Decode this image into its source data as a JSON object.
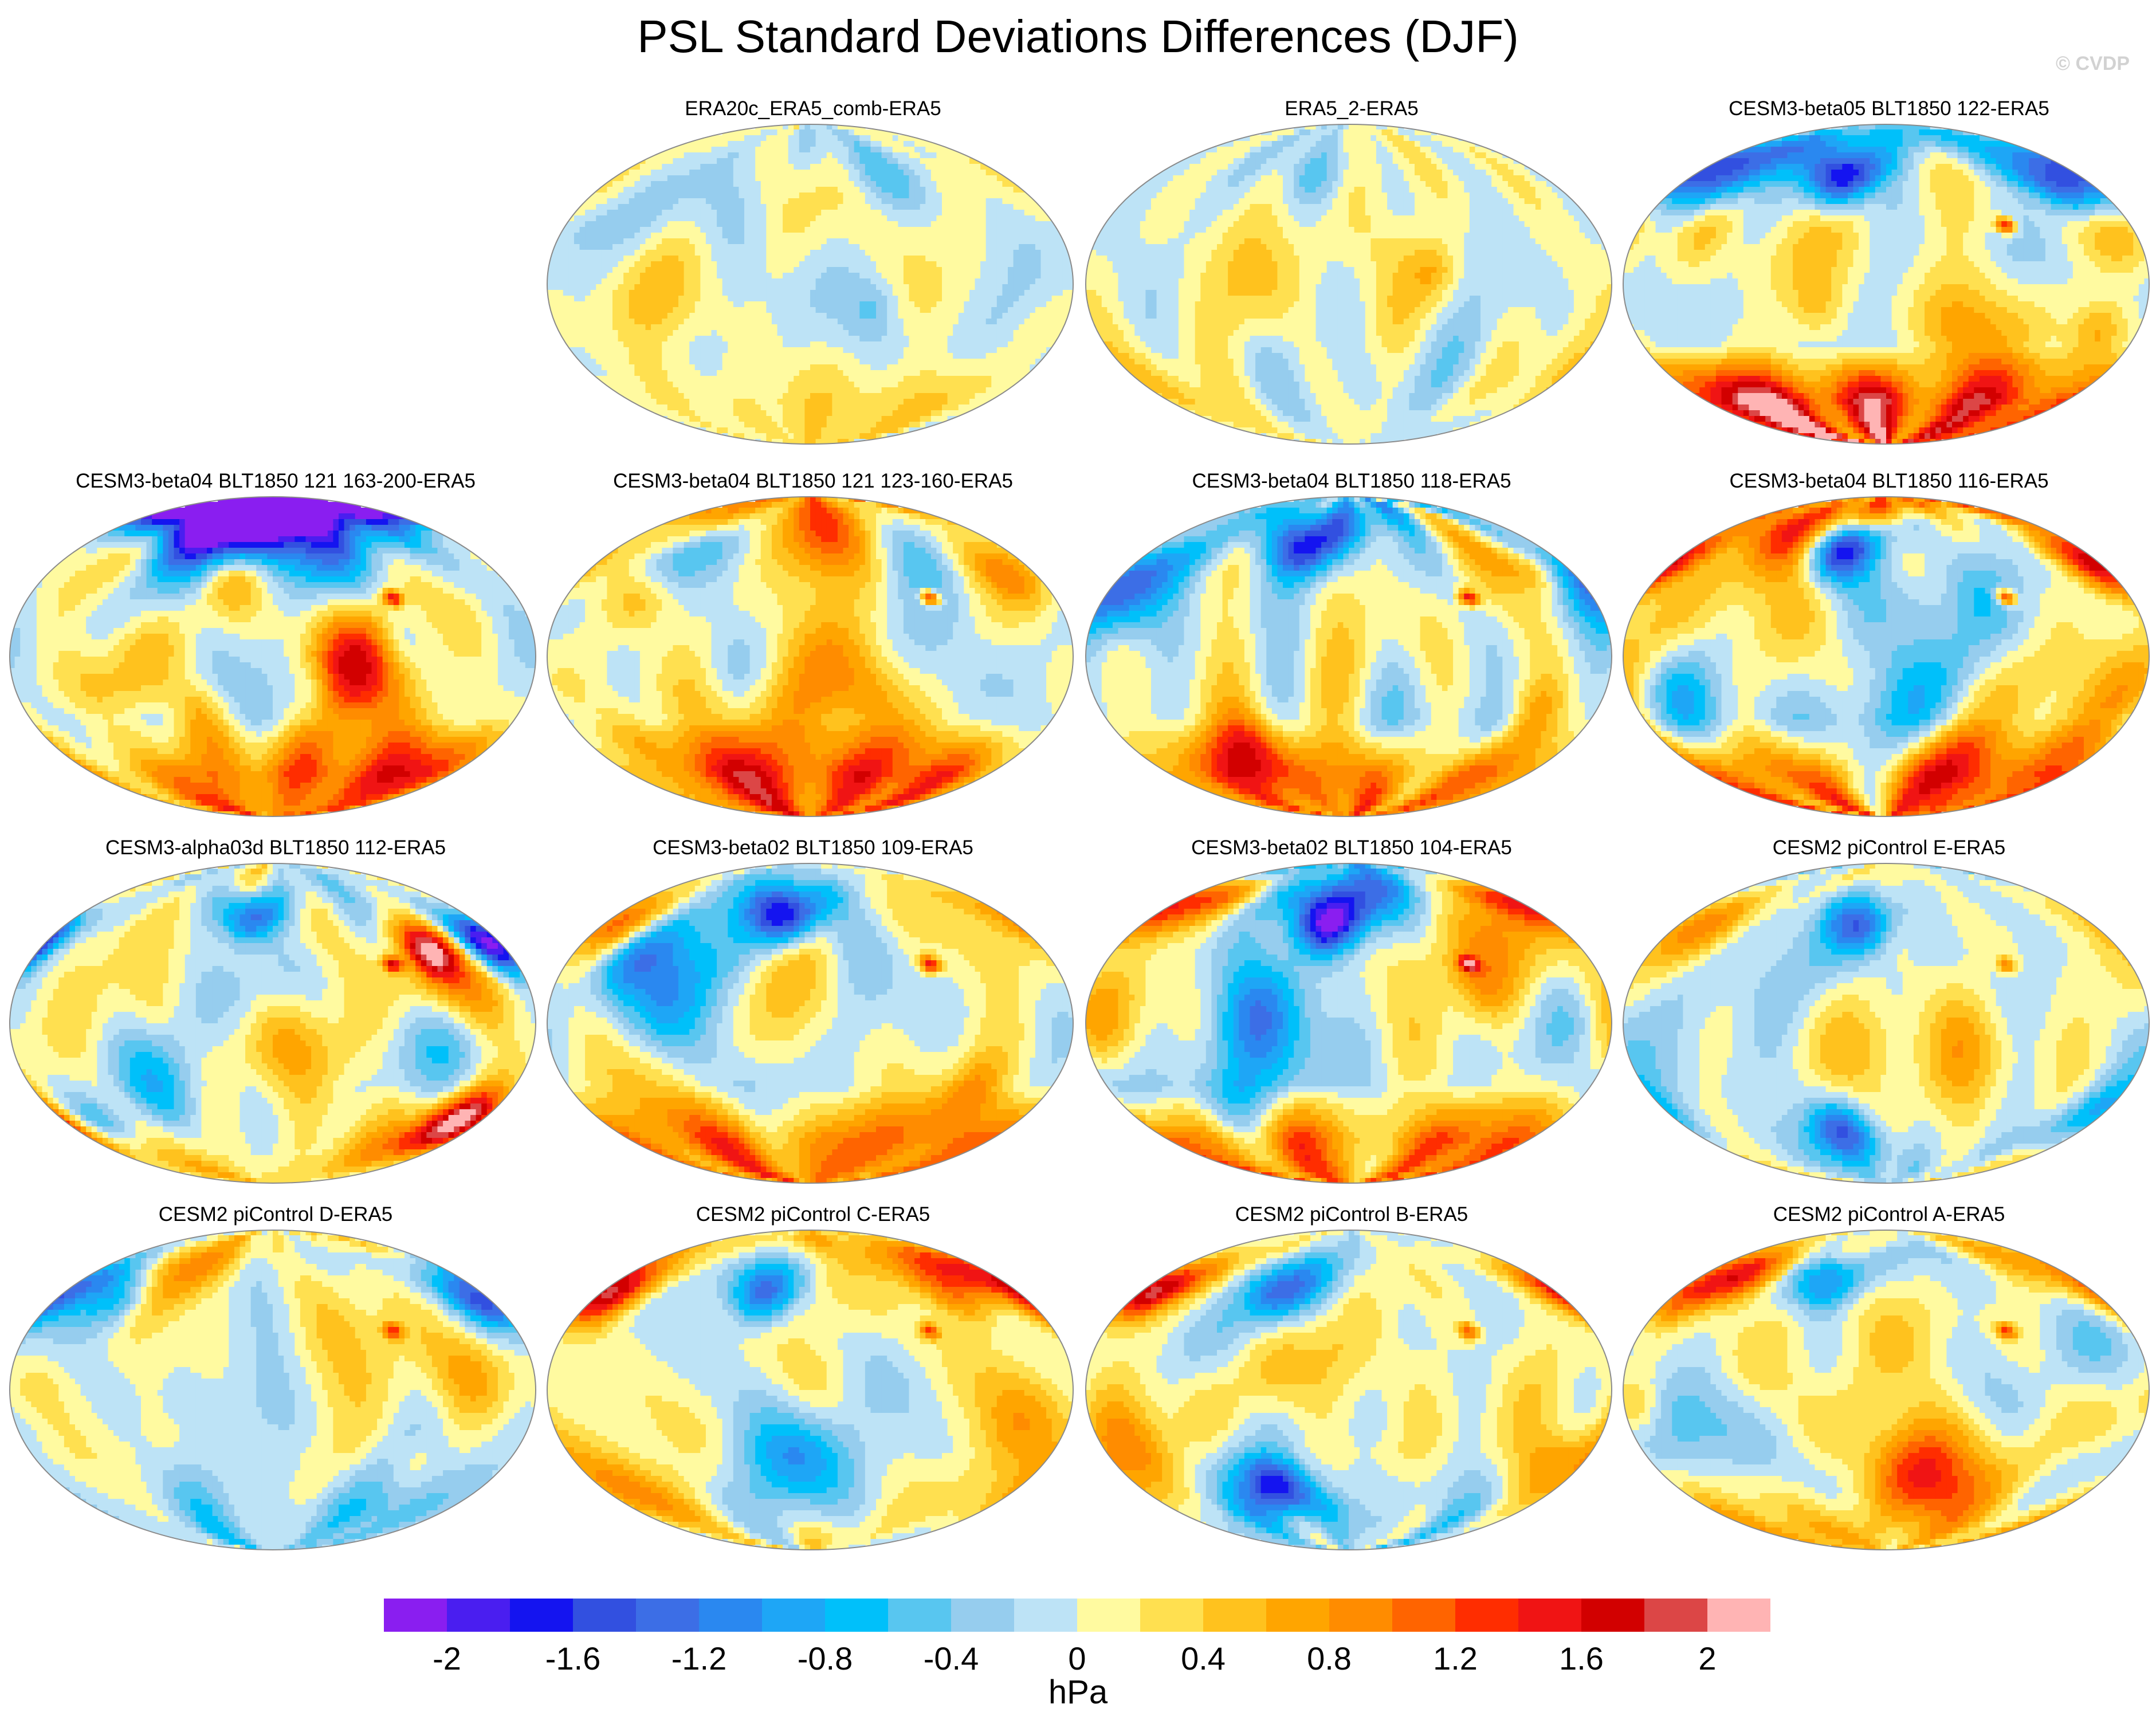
{
  "title": "PSL Standard Deviations Differences (DJF)",
  "copyright": "© CVDP",
  "chart_data": {
    "type": "heatmap",
    "title": "PSL Standard Deviations Differences (DJF)",
    "projection": "robinson (global map panels)",
    "units": "hPa",
    "colorbar": {
      "boundaries": [
        -2.2,
        -2,
        -1.8,
        -1.6,
        -1.4,
        -1.2,
        -1,
        -0.8,
        -0.6,
        -0.4,
        -0.2,
        0,
        0.2,
        0.4,
        0.6,
        0.8,
        1,
        1.2,
        1.4,
        1.6,
        1.8,
        2,
        2.2
      ],
      "colors": [
        "#8a1ef0",
        "#4a1ef0",
        "#1414f0",
        "#3250e0",
        "#3c6ee6",
        "#2a88f0",
        "#1ea6f6",
        "#00c0fa",
        "#58c6f0",
        "#96cdee",
        "#bde3f6",
        "#fffaa0",
        "#ffe050",
        "#ffc21e",
        "#ffa500",
        "#ff8c00",
        "#ff6400",
        "#ff2d00",
        "#f01414",
        "#d20000",
        "#dc4646",
        "#ffb4b4"
      ],
      "tick_labels": [
        "-2",
        "-1.6",
        "-1.2",
        "-0.8",
        "-0.4",
        "0",
        "0.4",
        "0.8",
        "1.2",
        "1.6",
        "2"
      ],
      "tick_values": [
        -2,
        -1.6,
        -1.2,
        -0.8,
        -0.4,
        0,
        0.4,
        0.8,
        1.2,
        1.6,
        2
      ]
    },
    "panels": [
      {
        "title": "ERA20c_ERA5_comb-ERA5",
        "row": 0,
        "col": 1,
        "seed": 11,
        "amp": 0.45,
        "sbias": 0.35,
        "spot": 0.0,
        "nh": []
      },
      {
        "title": "ERA5_2-ERA5",
        "row": 0,
        "col": 2,
        "seed": 23,
        "amp": 0.4,
        "sbias": 0.05,
        "spot": 0.0,
        "nh": []
      },
      {
        "title": "CESM3-beta05 BLT1850 122-ERA5",
        "row": 0,
        "col": 3,
        "seed": 37,
        "amp": 0.7,
        "sbias": 1.9,
        "spot": 1.6,
        "nh": [
          {
            "lon": 150,
            "lat": 55,
            "v": -1.8,
            "r": 14
          },
          {
            "lon": -40,
            "lat": 60,
            "v": -2.0,
            "r": 12
          },
          {
            "lon": -150,
            "lat": 60,
            "v": -1.2,
            "r": 16
          }
        ]
      },
      {
        "title": "CESM3-beta04 BLT1850 121 163-200-ERA5",
        "row": 1,
        "col": 0,
        "seed": 41,
        "amp": 0.7,
        "sbias": 1.3,
        "spot": 1.6,
        "nh": [
          {
            "lon": 20,
            "lat": 80,
            "v": -2.0,
            "r": 30
          },
          {
            "lon": -60,
            "lat": 75,
            "v": -1.6,
            "r": 20
          },
          {
            "lon": -30,
            "lat": 45,
            "v": 0.9,
            "r": 14
          }
        ]
      },
      {
        "title": "CESM3-beta04 BLT1850 121 123-160-ERA5",
        "row": 1,
        "col": 1,
        "seed": 53,
        "amp": 0.7,
        "sbias": 1.2,
        "spot": 1.6,
        "nh": [
          {
            "lon": 160,
            "lat": 45,
            "v": 1.0,
            "r": 14
          },
          {
            "lon": -120,
            "lat": 50,
            "v": -1.0,
            "r": 14
          },
          {
            "lon": 0,
            "lat": 80,
            "v": 0.8,
            "r": 25
          }
        ]
      },
      {
        "title": "CESM3-beta04 BLT1850 118-ERA5",
        "row": 1,
        "col": 2,
        "seed": 67,
        "amp": 0.7,
        "sbias": 1.1,
        "spot": 1.5,
        "nh": [
          {
            "lon": -170,
            "lat": 40,
            "v": -1.4,
            "r": 18
          },
          {
            "lon": -40,
            "lat": 65,
            "v": -1.5,
            "r": 14
          },
          {
            "lon": 150,
            "lat": 50,
            "v": 1.0,
            "r": 12
          }
        ]
      },
      {
        "title": "CESM3-beta04 BLT1850 116-ERA5",
        "row": 1,
        "col": 3,
        "seed": 71,
        "amp": 0.7,
        "sbias": 1.3,
        "spot": 1.6,
        "nh": [
          {
            "lon": 175,
            "lat": 50,
            "v": 2.2,
            "r": 13
          },
          {
            "lon": -40,
            "lat": 60,
            "v": -1.7,
            "r": 12
          },
          {
            "lon": -90,
            "lat": 75,
            "v": 1.4,
            "r": 16
          }
        ]
      },
      {
        "title": "CESM3-alpha03d BLT1850 112-ERA5",
        "row": 2,
        "col": 0,
        "seed": 83,
        "amp": 0.65,
        "sbias": 0.4,
        "spot": 1.5,
        "nh": [
          {
            "lon": 170,
            "lat": 45,
            "v": -2.1,
            "r": 11
          },
          {
            "lon": -20,
            "lat": 60,
            "v": -1.8,
            "r": 11
          },
          {
            "lon": 120,
            "lat": 40,
            "v": 1.4,
            "r": 10
          },
          {
            "lon": 160,
            "lat": -55,
            "v": 1.6,
            "r": 12
          }
        ]
      },
      {
        "title": "CESM3-beta02 BLT1850 109-ERA5",
        "row": 2,
        "col": 1,
        "seed": 97,
        "amp": 0.7,
        "sbias": 1.1,
        "spot": 1.6,
        "nh": [
          {
            "lon": -20,
            "lat": 60,
            "v": -1.9,
            "r": 12
          },
          {
            "lon": -160,
            "lat": 55,
            "v": 1.0,
            "r": 12
          }
        ]
      },
      {
        "title": "CESM3-beta02 BLT1850 104-ERA5",
        "row": 2,
        "col": 2,
        "seed": 101,
        "amp": 0.7,
        "sbias": 1.4,
        "spot": 1.5,
        "nh": [
          {
            "lon": -20,
            "lat": 55,
            "v": -1.9,
            "r": 12
          },
          {
            "lon": -170,
            "lat": 65,
            "v": 1.4,
            "r": 14
          },
          {
            "lon": 20,
            "lat": 80,
            "v": -1.3,
            "r": 25
          }
        ]
      },
      {
        "title": "CESM2 piControl E-ERA5",
        "row": 2,
        "col": 3,
        "seed": 113,
        "amp": 0.6,
        "sbias": 0.0,
        "spot": 1.0,
        "nh": [
          {
            "lon": -20,
            "lat": 55,
            "v": -1.3,
            "r": 12
          },
          {
            "lon": -150,
            "lat": 55,
            "v": 1.0,
            "r": 16
          },
          {
            "lon": -40,
            "lat": -60,
            "v": -1.2,
            "r": 12
          }
        ]
      },
      {
        "title": "CESM2 piControl D-ERA5",
        "row": 3,
        "col": 0,
        "seed": 127,
        "amp": 0.6,
        "sbias": -0.3,
        "spot": 1.2,
        "nh": [
          {
            "lon": 170,
            "lat": 50,
            "v": -1.2,
            "r": 12
          },
          {
            "lon": -120,
            "lat": 55,
            "v": -1.0,
            "r": 12
          },
          {
            "lon": -100,
            "lat": 65,
            "v": 1.0,
            "r": 14
          }
        ]
      },
      {
        "title": "CESM2 piControl C-ERA5",
        "row": 3,
        "col": 1,
        "seed": 131,
        "amp": 0.6,
        "sbias": 0.3,
        "spot": 1.2,
        "nh": [
          {
            "lon": -170,
            "lat": 55,
            "v": 1.8,
            "r": 13
          },
          {
            "lon": -40,
            "lat": 55,
            "v": -1.4,
            "r": 12
          },
          {
            "lon": 120,
            "lat": 65,
            "v": 1.2,
            "r": 14
          }
        ]
      },
      {
        "title": "CESM2 piControl B-ERA5",
        "row": 3,
        "col": 2,
        "seed": 149,
        "amp": 0.6,
        "sbias": -0.4,
        "spot": 1.2,
        "nh": [
          {
            "lon": -170,
            "lat": 55,
            "v": 2.1,
            "r": 12
          },
          {
            "lon": -60,
            "lat": 55,
            "v": -1.3,
            "r": 12
          },
          {
            "lon": -60,
            "lat": -55,
            "v": -1.7,
            "r": 12
          }
        ]
      },
      {
        "title": "CESM2 piControl A-ERA5",
        "row": 3,
        "col": 3,
        "seed": 157,
        "amp": 0.6,
        "sbias": 0.0,
        "spot": 1.2,
        "nh": [
          {
            "lon": -170,
            "lat": 55,
            "v": 1.4,
            "r": 13
          },
          {
            "lon": -50,
            "lat": 60,
            "v": -1.3,
            "r": 12
          },
          {
            "lon": -130,
            "lat": 65,
            "v": 0.9,
            "r": 12
          }
        ]
      }
    ]
  }
}
